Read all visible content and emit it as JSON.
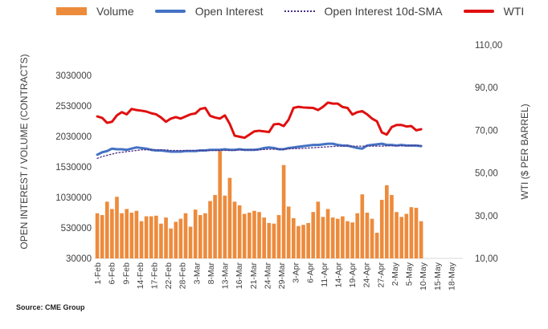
{
  "legend": {
    "volume": "Volume",
    "open_interest": "Open Interest",
    "oi_sma": "Open Interest 10d-SMA",
    "wti": "WTI"
  },
  "source": "Source: CME Group",
  "chart_data": {
    "type": "bar",
    "ylabel_left": "OPEN INTEREST / VOLUME (CONTRACTS)",
    "ylabel_right": "WTI ($ PER BARREL)",
    "ylim_left": [
      30000,
      3530000
    ],
    "ylim_right": [
      10,
      110
    ],
    "left_ticks": [
      "30000",
      "530000",
      "1030000",
      "1530000",
      "2030000",
      "2530000",
      "3030000"
    ],
    "right_ticks": [
      "10,00",
      "30,00",
      "50,00",
      "70,00",
      "90,00",
      "110,00"
    ],
    "x_tick_labels": [
      "1-Feb",
      "6-Feb",
      "9-Feb",
      "14-Feb",
      "17-Feb",
      "22-Feb",
      "28-Feb",
      "3-Mar",
      "8-Mar",
      "13-Mar",
      "16-Mar",
      "21-Mar",
      "24-Mar",
      "29-Mar",
      "3-Apr",
      "6-Apr",
      "11-Apr",
      "14-Apr",
      "19-Apr",
      "24-Apr",
      "27-Apr",
      "2-May",
      "5-May",
      "10-May",
      "15-May",
      "18-May"
    ],
    "colors": {
      "volume": "#ED8B3C",
      "open_interest": "#4472C4",
      "oi_sma": "#4B2E83",
      "wti": "#E01010"
    },
    "series": [
      {
        "name": "Volume",
        "values": [
          770000,
          740000,
          960000,
          840000,
          1040000,
          770000,
          840000,
          780000,
          810000,
          640000,
          720000,
          720000,
          730000,
          600000,
          700000,
          520000,
          630000,
          680000,
          770000,
          550000,
          830000,
          740000,
          770000,
          970000,
          1070000,
          1790000,
          1060000,
          1350000,
          960000,
          900000,
          760000,
          780000,
          810000,
          790000,
          700000,
          610000,
          600000,
          740000,
          1560000,
          880000,
          690000,
          560000,
          580000,
          610000,
          790000,
          960000,
          710000,
          840000,
          700000,
          680000,
          720000,
          640000,
          620000,
          770000,
          1080000,
          780000,
          680000,
          450000,
          990000,
          1230000,
          1070000,
          790000,
          710000,
          760000,
          870000,
          860000,
          640000
        ]
      },
      {
        "name": "Open Interest",
        "values": [
          1730000,
          1770000,
          1790000,
          1830000,
          1820000,
          1820000,
          1810000,
          1830000,
          1850000,
          1840000,
          1830000,
          1810000,
          1800000,
          1800000,
          1790000,
          1780000,
          1780000,
          1780000,
          1790000,
          1790000,
          1790000,
          1800000,
          1800000,
          1810000,
          1810000,
          1810000,
          1820000,
          1810000,
          1810000,
          1820000,
          1810000,
          1810000,
          1810000,
          1820000,
          1840000,
          1850000,
          1840000,
          1820000,
          1820000,
          1840000,
          1850000,
          1860000,
          1870000,
          1880000,
          1890000,
          1890000,
          1900000,
          1910000,
          1910000,
          1890000,
          1880000,
          1880000,
          1860000,
          1840000,
          1830000,
          1880000,
          1890000,
          1900000,
          1910000,
          1890000,
          1890000,
          1880000,
          1890000,
          1880000,
          1880000,
          1880000,
          1870000
        ]
      },
      {
        "name": "Open Interest 10d-SMA",
        "values": [
          1670000,
          1700000,
          1720000,
          1740000,
          1760000,
          1770000,
          1780000,
          1790000,
          1800000,
          1810000,
          1810000,
          1810000,
          1810000,
          1810000,
          1810000,
          1800000,
          1800000,
          1800000,
          1800000,
          1800000,
          1800000,
          1800000,
          1800000,
          1800000,
          1800000,
          1800000,
          1800000,
          1800000,
          1800000,
          1810000,
          1810000,
          1810000,
          1810000,
          1810000,
          1815000,
          1820000,
          1820000,
          1820000,
          1820000,
          1825000,
          1830000,
          1830000,
          1835000,
          1840000,
          1845000,
          1850000,
          1855000,
          1860000,
          1865000,
          1870000,
          1870000,
          1870000,
          1870000,
          1870000,
          1870000,
          1870000,
          1870000,
          1870000,
          1870000,
          1875000,
          1875000,
          1875000,
          1875000,
          1878000,
          1880000,
          1880000,
          1880000
        ]
      },
      {
        "name": "WTI",
        "values": [
          76.5,
          75.8,
          73.5,
          74.0,
          77.0,
          78.5,
          77.5,
          80.0,
          79.5,
          79.2,
          78.8,
          78.0,
          77.5,
          76.0,
          74.0,
          75.5,
          76.2,
          75.5,
          76.5,
          77.5,
          77.9,
          80.0,
          80.5,
          76.8,
          76.0,
          75.5,
          77.0,
          73.0,
          67.5,
          67.0,
          66.5,
          68.0,
          69.5,
          69.8,
          69.5,
          69.2,
          72.8,
          73.0,
          72.0,
          75.0,
          80.5,
          81.0,
          80.7,
          80.6,
          80.5,
          79.5,
          81.0,
          83.0,
          82.5,
          82.5,
          80.9,
          80.5,
          77.4,
          78.5,
          79.0,
          77.5,
          75.5,
          74.2,
          69.0,
          68.0,
          71.5,
          72.5,
          72.5,
          71.8,
          72.0,
          70.0,
          70.5
        ]
      }
    ]
  }
}
